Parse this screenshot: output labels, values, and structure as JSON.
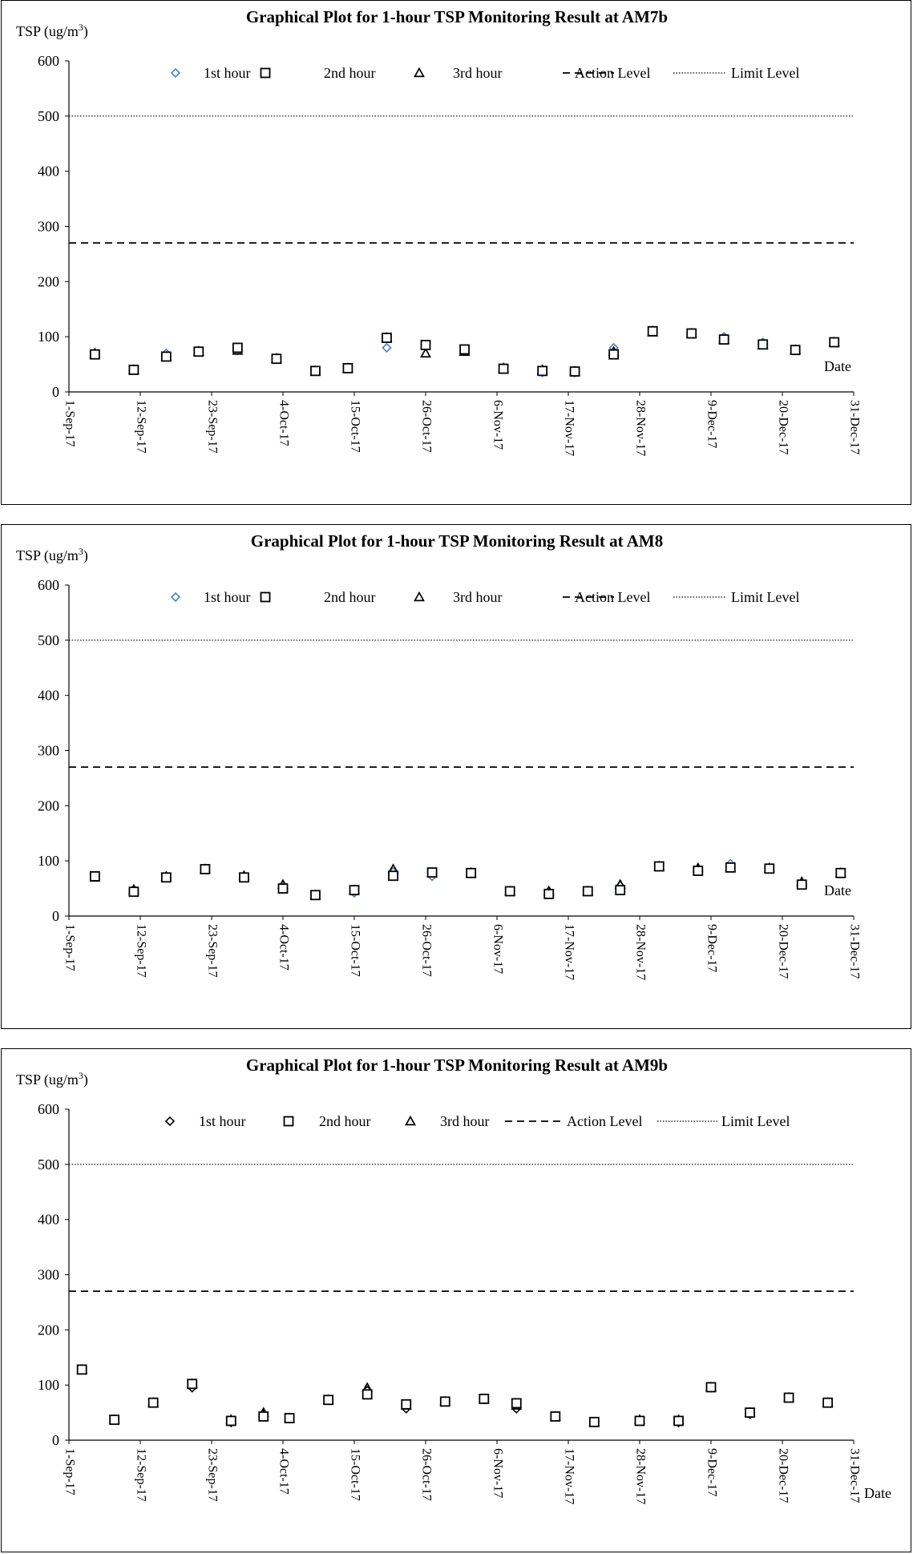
{
  "charts": [
    {
      "title": "Graphical Plot for 1-hour TSP Monitoring Result at AM7b",
      "ylabel": "TSP (ug/m",
      "ylabel_sup": "3",
      "ylabel_end": ")",
      "xlabel": "Date",
      "legend": {
        "h1": "1st hour",
        "h2": "2nd hour",
        "h3": "3rd hour",
        "action": "Action Level",
        "limit": "Limit Level"
      }
    },
    {
      "title": "Graphical Plot for 1-hour TSP Monitoring Result at AM8",
      "ylabel": "TSP (ug/m",
      "ylabel_sup": "3",
      "ylabel_end": ")",
      "xlabel": "Date",
      "legend": {
        "h1": "1st hour",
        "h2": "2nd hour",
        "h3": "3rd hour",
        "action": "Action Level",
        "limit": "Limit Level"
      }
    },
    {
      "title": "Graphical Plot for 1-hour TSP Monitoring Result at AM9b",
      "ylabel": "TSP (ug/m",
      "ylabel_sup": "3",
      "ylabel_end": ")",
      "xlabel": "Date",
      "legend": {
        "h1": "1st hour",
        "h2": "2nd hour",
        "h3": "3rd hour",
        "action": "Action Level",
        "limit": "Limit Level"
      }
    }
  ],
  "chart_data": [
    {
      "type": "scatter",
      "title": "Graphical Plot for 1-hour TSP Monitoring Result at AM7b",
      "ylabel": "TSP (ug/m3)",
      "xlabel": "Date",
      "ylim": [
        0,
        600
      ],
      "yticks": [
        0,
        100,
        200,
        300,
        400,
        500,
        600
      ],
      "xlim": [
        "2017-09-01",
        "2017-12-31"
      ],
      "xticks": [
        "1-Sep-17",
        "12-Sep-17",
        "23-Sep-17",
        "4-Oct-17",
        "15-Oct-17",
        "26-Oct-17",
        "6-Nov-17",
        "17-Nov-17",
        "28-Nov-17",
        "9-Dec-17",
        "20-Dec-17",
        "31-Dec-17"
      ],
      "legend_position": "top",
      "action_level": 270,
      "limit_level": 500,
      "marker_color_1st": "#4f81bd",
      "dates": [
        "2017-09-05",
        "2017-09-11",
        "2017-09-16",
        "2017-09-21",
        "2017-09-27",
        "2017-10-03",
        "2017-10-09",
        "2017-10-14",
        "2017-10-20",
        "2017-10-26",
        "2017-11-01",
        "2017-11-07",
        "2017-11-13",
        "2017-11-18",
        "2017-11-24",
        "2017-11-30",
        "2017-12-06",
        "2017-12-11",
        "2017-12-17",
        "2017-12-22",
        "2017-12-28"
      ],
      "series": [
        {
          "name": "1st hour",
          "marker": "diamond",
          "values": [
            70,
            40,
            70,
            75,
            75,
            62,
            38,
            42,
            80,
            85,
            75,
            45,
            35,
            35,
            80,
            112,
            106,
            100,
            90,
            76,
            90
          ]
        },
        {
          "name": "2nd hour",
          "marker": "square",
          "values": [
            68,
            40,
            64,
            73,
            80,
            60,
            38,
            43,
            98,
            85,
            77,
            42,
            38,
            37,
            68,
            110,
            106,
            95,
            86,
            76,
            90
          ]
        },
        {
          "name": "3rd hour",
          "marker": "triangle",
          "values": [
            70,
            40,
            64,
            73,
            75,
            60,
            38,
            43,
            98,
            70,
            73,
            42,
            40,
            37,
            73,
            108,
            106,
            95,
            85,
            76,
            90
          ]
        }
      ]
    },
    {
      "type": "scatter",
      "title": "Graphical Plot for 1-hour TSP Monitoring Result at AM8",
      "ylabel": "TSP (ug/m3)",
      "xlabel": "Date",
      "ylim": [
        0,
        600
      ],
      "yticks": [
        0,
        100,
        200,
        300,
        400,
        500,
        600
      ],
      "xlim": [
        "2017-09-01",
        "2017-12-31"
      ],
      "xticks": [
        "1-Sep-17",
        "12-Sep-17",
        "23-Sep-17",
        "4-Oct-17",
        "15-Oct-17",
        "26-Oct-17",
        "6-Nov-17",
        "17-Nov-17",
        "28-Nov-17",
        "9-Dec-17",
        "20-Dec-17",
        "31-Dec-17"
      ],
      "legend_position": "top",
      "action_level": 270,
      "limit_level": 500,
      "marker_color_1st": "#4f81bd",
      "dates": [
        "2017-09-05",
        "2017-09-11",
        "2017-09-16",
        "2017-09-22",
        "2017-09-28",
        "2017-10-04",
        "2017-10-09",
        "2017-10-15",
        "2017-10-21",
        "2017-10-27",
        "2017-11-02",
        "2017-11-08",
        "2017-11-14",
        "2017-11-20",
        "2017-11-25",
        "2017-12-01",
        "2017-12-07",
        "2017-12-12",
        "2017-12-18",
        "2017-12-23",
        "2017-12-29"
      ],
      "series": [
        {
          "name": "1st hour",
          "marker": "diamond",
          "values": [
            73,
            48,
            70,
            85,
            72,
            55,
            38,
            42,
            80,
            72,
            80,
            45,
            45,
            45,
            55,
            90,
            85,
            95,
            88,
            60,
            78
          ]
        },
        {
          "name": "2nd hour",
          "marker": "square",
          "values": [
            72,
            44,
            70,
            85,
            70,
            50,
            38,
            47,
            73,
            79,
            78,
            45,
            40,
            45,
            47,
            90,
            82,
            88,
            86,
            57,
            78
          ]
        },
        {
          "name": "3rd hour",
          "marker": "triangle",
          "values": [
            70,
            48,
            72,
            85,
            73,
            57,
            38,
            47,
            85,
            78,
            78,
            45,
            45,
            45,
            57,
            90,
            87,
            87,
            87,
            62,
            78
          ]
        }
      ]
    },
    {
      "type": "scatter",
      "title": "Graphical Plot for 1-hour TSP Monitoring Result at AM9b",
      "ylabel": "TSP (ug/m3)",
      "xlabel": "Date",
      "ylim": [
        0,
        600
      ],
      "yticks": [
        0,
        100,
        200,
        300,
        400,
        500,
        600
      ],
      "xlim": [
        "2017-09-01",
        "2017-12-31"
      ],
      "xticks": [
        "1-Sep-17",
        "12-Sep-17",
        "23-Sep-17",
        "4-Oct-17",
        "15-Oct-17",
        "26-Oct-17",
        "6-Nov-17",
        "17-Nov-17",
        "28-Nov-17",
        "9-Dec-17",
        "20-Dec-17",
        "31-Dec-17"
      ],
      "legend_position": "top",
      "action_level": 270,
      "limit_level": 500,
      "marker_color_1st": "#000000",
      "dates": [
        "2017-09-03",
        "2017-09-08",
        "2017-09-14",
        "2017-09-20",
        "2017-09-26",
        "2017-10-01",
        "2017-10-05",
        "2017-10-11",
        "2017-10-17",
        "2017-10-23",
        "2017-10-29",
        "2017-11-04",
        "2017-11-09",
        "2017-11-15",
        "2017-11-21",
        "2017-11-28",
        "2017-12-04",
        "2017-12-09",
        "2017-12-15",
        "2017-12-21",
        "2017-12-27"
      ],
      "series": [
        {
          "name": "1st hour",
          "marker": "diamond",
          "values": [
            128,
            37,
            68,
            95,
            32,
            47,
            40,
            73,
            90,
            57,
            70,
            74,
            57,
            43,
            32,
            35,
            32,
            95,
            47,
            77,
            68
          ]
        },
        {
          "name": "2nd hour",
          "marker": "square",
          "values": [
            128,
            37,
            68,
            102,
            35,
            43,
            40,
            73,
            83,
            65,
            70,
            75,
            67,
            43,
            33,
            35,
            35,
            96,
            50,
            77,
            68
          ]
        },
        {
          "name": "3rd hour",
          "marker": "triangle",
          "values": [
            128,
            37,
            68,
            102,
            37,
            50,
            40,
            73,
            95,
            63,
            70,
            74,
            63,
            43,
            32,
            37,
            37,
            96,
            50,
            77,
            68
          ]
        }
      ]
    }
  ]
}
